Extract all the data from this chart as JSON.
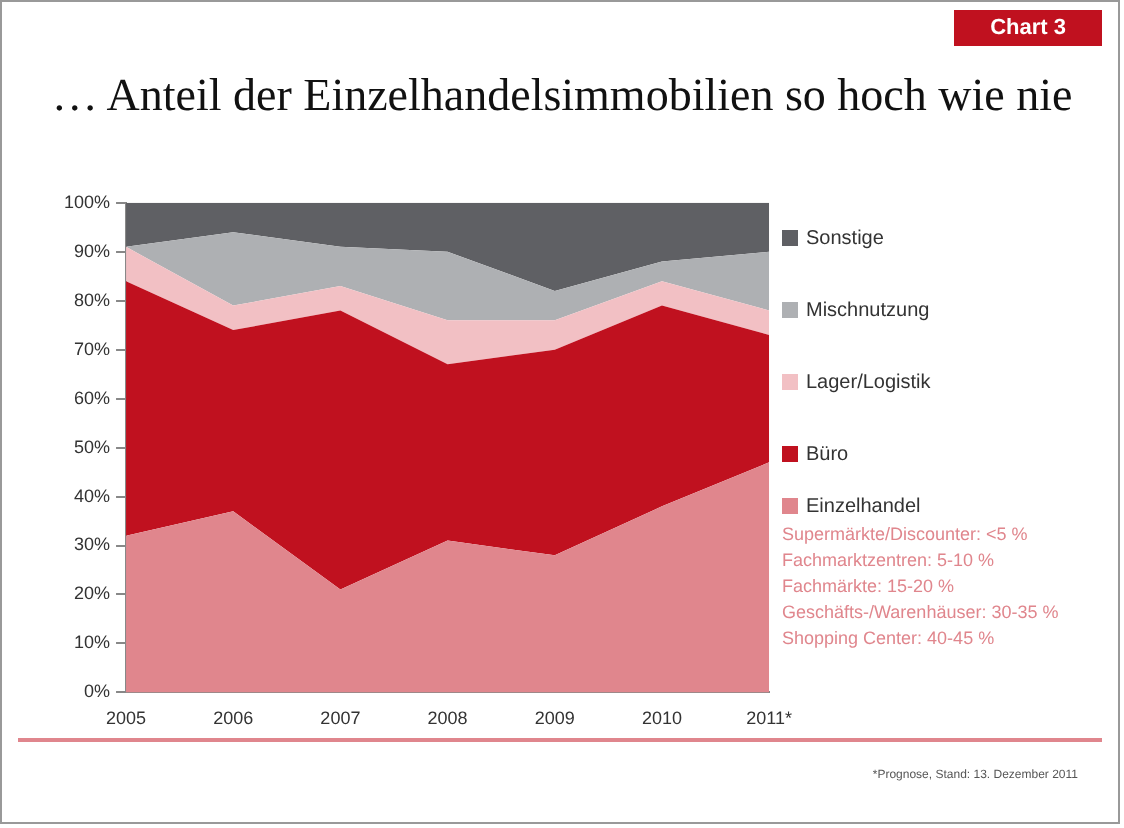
{
  "chart_data": {
    "type": "area",
    "stacked": true,
    "title": "… Anteil der Einzelhandelsimmobilien so hoch wie nie",
    "categories": [
      "2005",
      "2006",
      "2007",
      "2008",
      "2009",
      "2010",
      "2011*"
    ],
    "series": [
      {
        "name": "Einzelhandel",
        "color": "#e0868d",
        "values": [
          32,
          37,
          21,
          31,
          28,
          38,
          47
        ]
      },
      {
        "name": "Büro",
        "color": "#c0111f",
        "values": [
          52,
          37,
          57,
          36,
          42,
          41,
          26
        ]
      },
      {
        "name": "Lager/Logistik",
        "color": "#f2c0c4",
        "values": [
          7,
          5,
          5,
          9,
          6,
          5,
          5
        ]
      },
      {
        "name": "Mischnutzung",
        "color": "#aeb0b3",
        "values": [
          0,
          15,
          8,
          14,
          6,
          4,
          12
        ]
      },
      {
        "name": "Sonstige",
        "color": "#5f6064",
        "values": [
          9,
          6,
          9,
          10,
          18,
          12,
          10
        ]
      }
    ],
    "ylim": [
      0,
      100
    ],
    "yticks": [
      {
        "value": 0,
        "label": "0%"
      },
      {
        "value": 10,
        "label": "10%"
      },
      {
        "value": 20,
        "label": "20%"
      },
      {
        "value": 30,
        "label": "30%"
      },
      {
        "value": 40,
        "label": "40%"
      },
      {
        "value": 50,
        "label": "50%"
      },
      {
        "value": 60,
        "label": "60%"
      },
      {
        "value": 70,
        "label": "70%"
      },
      {
        "value": 80,
        "label": "80%"
      },
      {
        "value": 90,
        "label": "90%"
      },
      {
        "value": 100,
        "label": "100%"
      }
    ],
    "grid": false,
    "legend": "right",
    "annotations": [
      "Chart 3",
      "Supermärkte/Discounter: <5 %",
      "Fachmarktzentren: 5-10 %",
      "Fachmärkte: 15-20 %",
      "Geschäfts-/Warenhäuser: 30-35 %",
      "Shopping Center: 40-45 %",
      "*Prognose, Stand: 13. Dezember 2011"
    ]
  }
}
